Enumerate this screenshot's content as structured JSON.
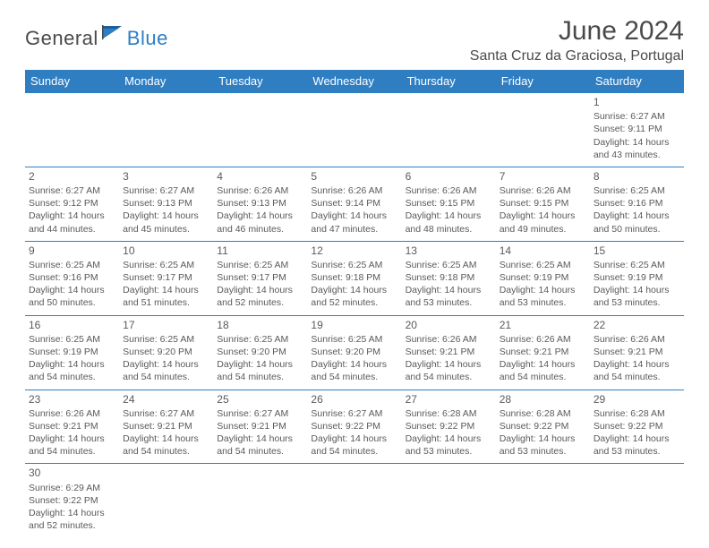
{
  "logo": {
    "text_dark": "General",
    "text_blue": "Blue"
  },
  "title": "June 2024",
  "subtitle": "Santa Cruz da Graciosa, Portugal",
  "colors": {
    "header_bg": "#2f7ec2",
    "header_fg": "#ffffff",
    "border": "#2f7ec2",
    "text": "#4a4a4a",
    "cell_text": "#5a5a5a"
  },
  "weekdays": [
    "Sunday",
    "Monday",
    "Tuesday",
    "Wednesday",
    "Thursday",
    "Friday",
    "Saturday"
  ],
  "weeks": [
    [
      null,
      null,
      null,
      null,
      null,
      null,
      {
        "n": "1",
        "sr": "Sunrise: 6:27 AM",
        "ss": "Sunset: 9:11 PM",
        "d1": "Daylight: 14 hours",
        "d2": "and 43 minutes."
      }
    ],
    [
      {
        "n": "2",
        "sr": "Sunrise: 6:27 AM",
        "ss": "Sunset: 9:12 PM",
        "d1": "Daylight: 14 hours",
        "d2": "and 44 minutes."
      },
      {
        "n": "3",
        "sr": "Sunrise: 6:27 AM",
        "ss": "Sunset: 9:13 PM",
        "d1": "Daylight: 14 hours",
        "d2": "and 45 minutes."
      },
      {
        "n": "4",
        "sr": "Sunrise: 6:26 AM",
        "ss": "Sunset: 9:13 PM",
        "d1": "Daylight: 14 hours",
        "d2": "and 46 minutes."
      },
      {
        "n": "5",
        "sr": "Sunrise: 6:26 AM",
        "ss": "Sunset: 9:14 PM",
        "d1": "Daylight: 14 hours",
        "d2": "and 47 minutes."
      },
      {
        "n": "6",
        "sr": "Sunrise: 6:26 AM",
        "ss": "Sunset: 9:15 PM",
        "d1": "Daylight: 14 hours",
        "d2": "and 48 minutes."
      },
      {
        "n": "7",
        "sr": "Sunrise: 6:26 AM",
        "ss": "Sunset: 9:15 PM",
        "d1": "Daylight: 14 hours",
        "d2": "and 49 minutes."
      },
      {
        "n": "8",
        "sr": "Sunrise: 6:25 AM",
        "ss": "Sunset: 9:16 PM",
        "d1": "Daylight: 14 hours",
        "d2": "and 50 minutes."
      }
    ],
    [
      {
        "n": "9",
        "sr": "Sunrise: 6:25 AM",
        "ss": "Sunset: 9:16 PM",
        "d1": "Daylight: 14 hours",
        "d2": "and 50 minutes."
      },
      {
        "n": "10",
        "sr": "Sunrise: 6:25 AM",
        "ss": "Sunset: 9:17 PM",
        "d1": "Daylight: 14 hours",
        "d2": "and 51 minutes."
      },
      {
        "n": "11",
        "sr": "Sunrise: 6:25 AM",
        "ss": "Sunset: 9:17 PM",
        "d1": "Daylight: 14 hours",
        "d2": "and 52 minutes."
      },
      {
        "n": "12",
        "sr": "Sunrise: 6:25 AM",
        "ss": "Sunset: 9:18 PM",
        "d1": "Daylight: 14 hours",
        "d2": "and 52 minutes."
      },
      {
        "n": "13",
        "sr": "Sunrise: 6:25 AM",
        "ss": "Sunset: 9:18 PM",
        "d1": "Daylight: 14 hours",
        "d2": "and 53 minutes."
      },
      {
        "n": "14",
        "sr": "Sunrise: 6:25 AM",
        "ss": "Sunset: 9:19 PM",
        "d1": "Daylight: 14 hours",
        "d2": "and 53 minutes."
      },
      {
        "n": "15",
        "sr": "Sunrise: 6:25 AM",
        "ss": "Sunset: 9:19 PM",
        "d1": "Daylight: 14 hours",
        "d2": "and 53 minutes."
      }
    ],
    [
      {
        "n": "16",
        "sr": "Sunrise: 6:25 AM",
        "ss": "Sunset: 9:19 PM",
        "d1": "Daylight: 14 hours",
        "d2": "and 54 minutes."
      },
      {
        "n": "17",
        "sr": "Sunrise: 6:25 AM",
        "ss": "Sunset: 9:20 PM",
        "d1": "Daylight: 14 hours",
        "d2": "and 54 minutes."
      },
      {
        "n": "18",
        "sr": "Sunrise: 6:25 AM",
        "ss": "Sunset: 9:20 PM",
        "d1": "Daylight: 14 hours",
        "d2": "and 54 minutes."
      },
      {
        "n": "19",
        "sr": "Sunrise: 6:25 AM",
        "ss": "Sunset: 9:20 PM",
        "d1": "Daylight: 14 hours",
        "d2": "and 54 minutes."
      },
      {
        "n": "20",
        "sr": "Sunrise: 6:26 AM",
        "ss": "Sunset: 9:21 PM",
        "d1": "Daylight: 14 hours",
        "d2": "and 54 minutes."
      },
      {
        "n": "21",
        "sr": "Sunrise: 6:26 AM",
        "ss": "Sunset: 9:21 PM",
        "d1": "Daylight: 14 hours",
        "d2": "and 54 minutes."
      },
      {
        "n": "22",
        "sr": "Sunrise: 6:26 AM",
        "ss": "Sunset: 9:21 PM",
        "d1": "Daylight: 14 hours",
        "d2": "and 54 minutes."
      }
    ],
    [
      {
        "n": "23",
        "sr": "Sunrise: 6:26 AM",
        "ss": "Sunset: 9:21 PM",
        "d1": "Daylight: 14 hours",
        "d2": "and 54 minutes."
      },
      {
        "n": "24",
        "sr": "Sunrise: 6:27 AM",
        "ss": "Sunset: 9:21 PM",
        "d1": "Daylight: 14 hours",
        "d2": "and 54 minutes."
      },
      {
        "n": "25",
        "sr": "Sunrise: 6:27 AM",
        "ss": "Sunset: 9:21 PM",
        "d1": "Daylight: 14 hours",
        "d2": "and 54 minutes."
      },
      {
        "n": "26",
        "sr": "Sunrise: 6:27 AM",
        "ss": "Sunset: 9:22 PM",
        "d1": "Daylight: 14 hours",
        "d2": "and 54 minutes."
      },
      {
        "n": "27",
        "sr": "Sunrise: 6:28 AM",
        "ss": "Sunset: 9:22 PM",
        "d1": "Daylight: 14 hours",
        "d2": "and 53 minutes."
      },
      {
        "n": "28",
        "sr": "Sunrise: 6:28 AM",
        "ss": "Sunset: 9:22 PM",
        "d1": "Daylight: 14 hours",
        "d2": "and 53 minutes."
      },
      {
        "n": "29",
        "sr": "Sunrise: 6:28 AM",
        "ss": "Sunset: 9:22 PM",
        "d1": "Daylight: 14 hours",
        "d2": "and 53 minutes."
      }
    ],
    [
      {
        "n": "30",
        "sr": "Sunrise: 6:29 AM",
        "ss": "Sunset: 9:22 PM",
        "d1": "Daylight: 14 hours",
        "d2": "and 52 minutes."
      },
      null,
      null,
      null,
      null,
      null,
      null
    ]
  ]
}
